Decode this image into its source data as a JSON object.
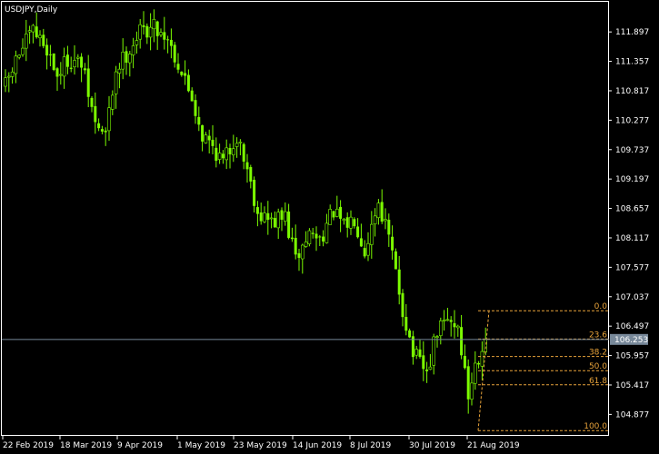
{
  "chart_title": "USDJPY,Daily",
  "colors": {
    "background": "#000000",
    "frame": "#ffffff",
    "candle_up": "#7cfc00",
    "candle_down": "#7cfc00",
    "fib_line": "#e8a33a",
    "bid_line": "#778899",
    "price_tag_bg": "#778899",
    "text": "#ffffff"
  },
  "current_price": "106.253",
  "chart_data": {
    "type": "candlestick",
    "title": "USDJPY,Daily",
    "ylim": [
      104.5,
      112.45
    ],
    "y_ticks": [
      "111.897",
      "111.357",
      "110.817",
      "110.277",
      "109.737",
      "109.197",
      "108.657",
      "108.117",
      "107.577",
      "107.037",
      "106.497",
      "105.957",
      "105.417",
      "104.877"
    ],
    "x_ticks": [
      "22 Feb 2019",
      "18 Mar 2019",
      "9 Apr 2019",
      "1 May 2019",
      "23 May 2019",
      "14 Jun 2019",
      "8 Jul 2019",
      "30 Jul 2019",
      "21 Aug 2019"
    ],
    "legend": "none",
    "grid": false,
    "close_path": [
      [
        0,
        110.9
      ],
      [
        4,
        111.5
      ],
      [
        8,
        111.9
      ],
      [
        12,
        111.6
      ],
      [
        15,
        111.1
      ],
      [
        18,
        111.4
      ],
      [
        22,
        111.3
      ],
      [
        26,
        110.2
      ],
      [
        29,
        110.0
      ],
      [
        32,
        111.2
      ],
      [
        36,
        111.6
      ],
      [
        39,
        111.9
      ],
      [
        43,
        112.0
      ],
      [
        47,
        111.8
      ],
      [
        50,
        111.3
      ],
      [
        54,
        110.7
      ],
      [
        57,
        110.0
      ],
      [
        60,
        109.8
      ],
      [
        63,
        109.5
      ],
      [
        67,
        110.0
      ],
      [
        70,
        109.4
      ],
      [
        73,
        108.6
      ],
      [
        77,
        108.4
      ],
      [
        81,
        108.5
      ],
      [
        84,
        107.7
      ],
      [
        88,
        108.2
      ],
      [
        91,
        108.1
      ],
      [
        95,
        108.6
      ],
      [
        98,
        108.3
      ],
      [
        101,
        108.5
      ],
      [
        104,
        107.9
      ],
      [
        108,
        108.8
      ],
      [
        111,
        108.1
      ],
      [
        115,
        106.8
      ],
      [
        118,
        106.0
      ],
      [
        122,
        105.6
      ],
      [
        125,
        106.4
      ],
      [
        128,
        106.6
      ],
      [
        131,
        106.5
      ],
      [
        134,
        105.2
      ],
      [
        136,
        105.8
      ],
      [
        139,
        106.3
      ]
    ],
    "fibonacci": {
      "levels": [
        "0.0",
        "23.6",
        "38.2",
        "50.0",
        "61.8",
        "100.0"
      ],
      "high": 106.78,
      "low": 104.58
    }
  }
}
